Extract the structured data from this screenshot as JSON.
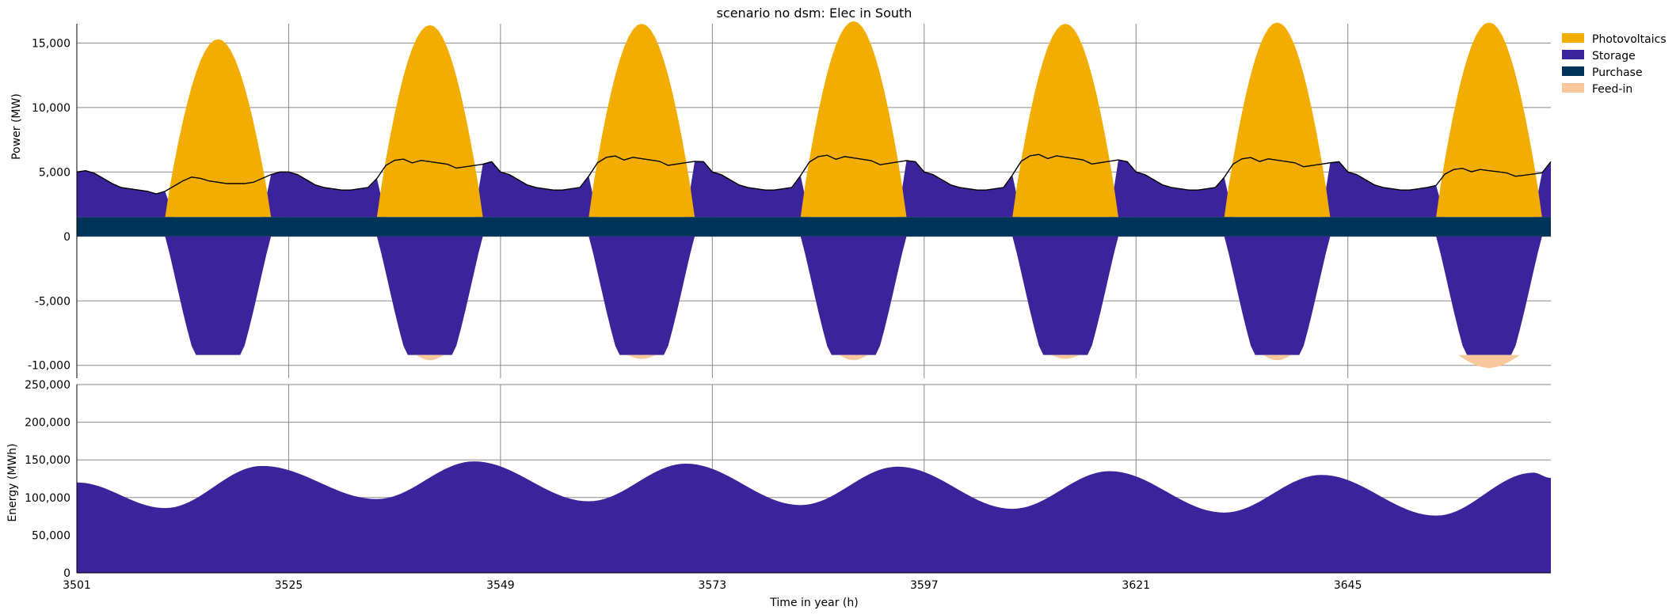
{
  "chart_data": [
    {
      "type": "area",
      "title": "scenario no dsm: Elec in South",
      "xlabel": "",
      "ylabel": "Power (MW)",
      "xlim": [
        3501,
        3668
      ],
      "ylim": [
        -11000,
        16500
      ],
      "yticks": [
        15000,
        10000,
        5000,
        0,
        -5000,
        -10000
      ],
      "ytick_labels": [
        "15,000",
        "10,000",
        "5,000",
        "0",
        "-5,000",
        "-10,000"
      ],
      "grid": true,
      "legend_position": "top-right",
      "colors": {
        "photovoltaics": "#f3ad00",
        "storage": "#3b249b",
        "purchase": "#00335a",
        "feed_in": "#f8c79b",
        "demand_line": "#000000"
      },
      "legend": [
        "Photovoltaics",
        "Storage",
        "Purchase",
        "Feed-in"
      ],
      "purchase_level": 1500,
      "series": [
        {
          "name": "Photovoltaics",
          "peaks": [
            {
              "start": 3511,
              "end": 3523,
              "peak": 13800,
              "peak_hour": 3516
            },
            {
              "start": 3535,
              "end": 3547,
              "peak": 14900,
              "peak_hour": 3541
            },
            {
              "start": 3559,
              "end": 3571,
              "peak": 15000,
              "peak_hour": 3565
            },
            {
              "start": 3583,
              "end": 3595,
              "peak": 15200,
              "peak_hour": 3589
            },
            {
              "start": 3607,
              "end": 3619,
              "peak": 15000,
              "peak_hour": 3613
            },
            {
              "start": 3631,
              "end": 3643,
              "peak": 15100,
              "peak_hour": 3637
            },
            {
              "start": 3655,
              "end": 3667,
              "peak": 15100,
              "peak_hour": 3661
            }
          ]
        },
        {
          "name": "Storage",
          "charge_min": -9200
        },
        {
          "name": "Feed-in",
          "feed_in_peaks": [
            {
              "hour": 3541,
              "value": 400
            },
            {
              "hour": 3565,
              "value": 300
            },
            {
              "hour": 3589,
              "value": 400
            },
            {
              "hour": 3613,
              "value": 300
            },
            {
              "hour": 3637,
              "value": 400
            },
            {
              "hour": 3661,
              "value": 1000
            }
          ]
        }
      ],
      "demand_day": [
        5000,
        5100,
        4900,
        4500,
        4100,
        3800,
        3700,
        3600,
        3500,
        3300,
        3500,
        3900,
        4300,
        4600,
        4500,
        4300,
        4200,
        4100,
        4100,
        4100,
        4200,
        4500,
        4800,
        5000
      ],
      "demand_day_high": [
        5000,
        4800,
        4400,
        4000,
        3800,
        3700,
        3600,
        3600,
        3700,
        3800,
        4500,
        5500,
        5900,
        6000,
        5700,
        5900,
        5800,
        5700,
        5600,
        5300,
        5400,
        5500,
        5600,
        5800
      ]
    },
    {
      "type": "area",
      "title": "",
      "xlabel": "Time in year (h)",
      "ylabel": "Energy (MWh)",
      "xlim": [
        3501,
        3668
      ],
      "ylim": [
        0,
        250000
      ],
      "yticks": [
        250000,
        200000,
        150000,
        100000,
        50000,
        0
      ],
      "ytick_labels": [
        "250,000",
        "200,000",
        "150,000",
        "100,000",
        "50,000",
        "0"
      ],
      "xticks": [
        3501,
        3525,
        3549,
        3573,
        3597,
        3621,
        3645
      ],
      "xtick_labels": [
        "3501",
        "3525",
        "3549",
        "3573",
        "3597",
        "3621",
        "3645"
      ],
      "grid": true,
      "series": [
        {
          "name": "Storage",
          "keypoints": [
            [
              3501,
              120000
            ],
            [
              3511,
              86000
            ],
            [
              3522,
              142000
            ],
            [
              3535,
              98000
            ],
            [
              3546,
              148000
            ],
            [
              3559,
              95000
            ],
            [
              3570,
              145000
            ],
            [
              3583,
              90000
            ],
            [
              3594,
              141000
            ],
            [
              3607,
              85000
            ],
            [
              3618,
              135000
            ],
            [
              3631,
              80000
            ],
            [
              3642,
              130000
            ],
            [
              3655,
              76000
            ],
            [
              3666,
              133000
            ],
            [
              3668,
              126000
            ]
          ]
        }
      ]
    }
  ]
}
